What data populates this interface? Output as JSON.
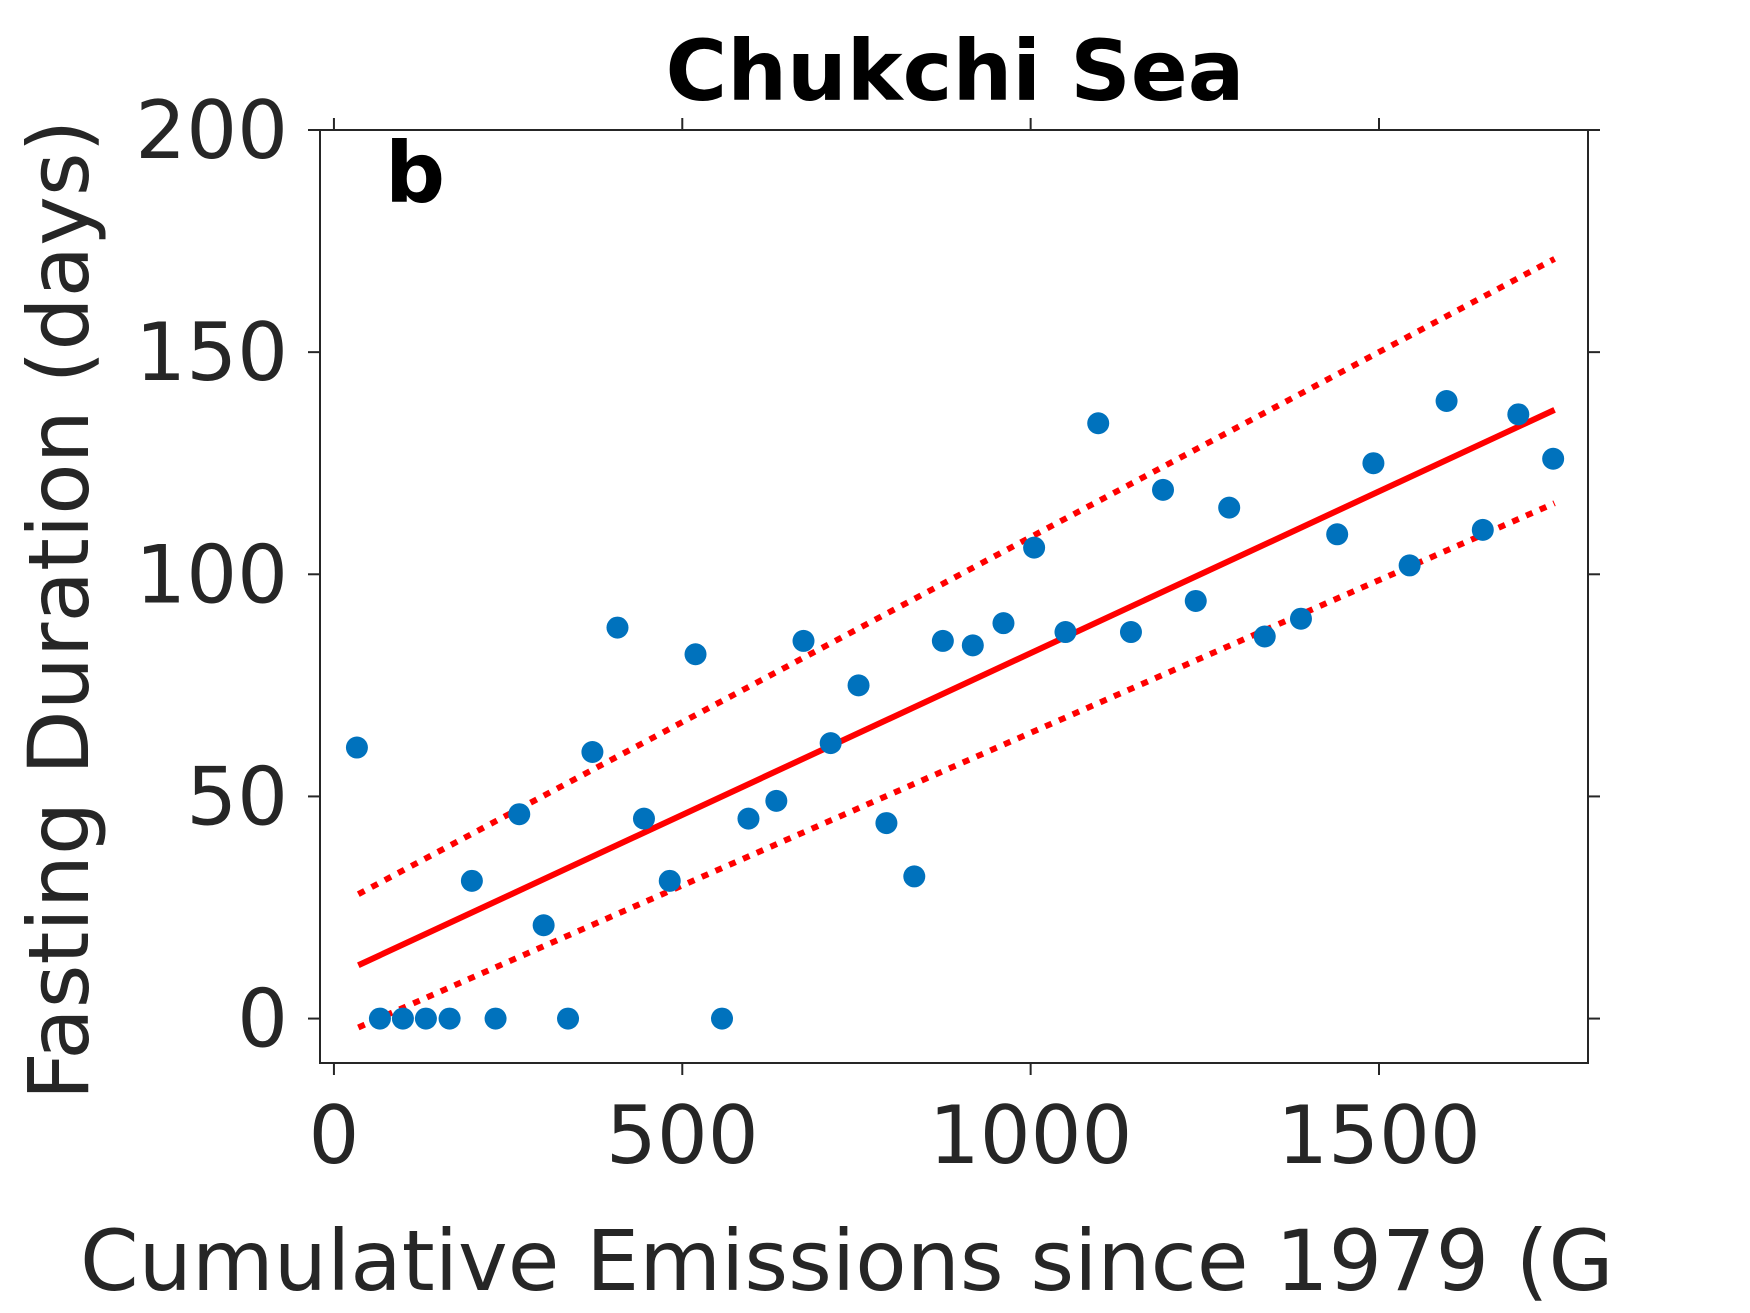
{
  "chart_data": {
    "type": "scatter",
    "title": "Chukchi Sea",
    "panel_label": "b",
    "xlabel": "Cumulative Emissions since 1979 (G",
    "ylabel": "Fasting Duration (days)",
    "xlim": [
      -20,
      1800
    ],
    "ylim": [
      -10,
      200
    ],
    "xticks": [
      0,
      500,
      1000,
      1500
    ],
    "xtick_labels": [
      "0",
      "500",
      "1000",
      "1500"
    ],
    "yticks": [
      0,
      50,
      100,
      150,
      200
    ],
    "ytick_labels": [
      "0",
      "50",
      "100",
      "150",
      "200"
    ],
    "grid": false,
    "colors": {
      "points": "#0072BD",
      "fit": "#FF0000",
      "axis": "#262626"
    },
    "series": [
      {
        "type": "scatter",
        "x": [
          33,
          66,
          99,
          132,
          166,
          198,
          232,
          266,
          301,
          336,
          371,
          407,
          445,
          482,
          519,
          557,
          595,
          635,
          674,
          713,
          753,
          793,
          833,
          874,
          917,
          961,
          1005,
          1050,
          1097,
          1144,
          1190,
          1237,
          1285,
          1336,
          1388,
          1440,
          1492,
          1544,
          1597,
          1649,
          1700,
          1750
        ],
        "y": [
          61,
          0,
          0,
          0,
          0,
          31,
          0,
          46,
          21,
          0,
          60,
          88,
          45,
          31,
          82,
          0,
          45,
          49,
          85,
          62,
          75,
          44,
          32,
          85,
          84,
          89,
          106,
          87,
          134,
          87,
          119,
          94,
          115,
          86,
          90,
          109,
          125,
          102,
          139,
          110,
          136,
          126
        ]
      },
      {
        "type": "line",
        "style": "solid",
        "x": [
          35,
          1752
        ],
        "y": [
          12,
          137
        ]
      },
      {
        "type": "line",
        "style": "dotted",
        "x": [
          35,
          1752
        ],
        "y": [
          28,
          171
        ]
      },
      {
        "type": "line",
        "style": "dotted",
        "x": [
          35,
          1752
        ],
        "y": [
          -2,
          116
        ]
      }
    ]
  }
}
